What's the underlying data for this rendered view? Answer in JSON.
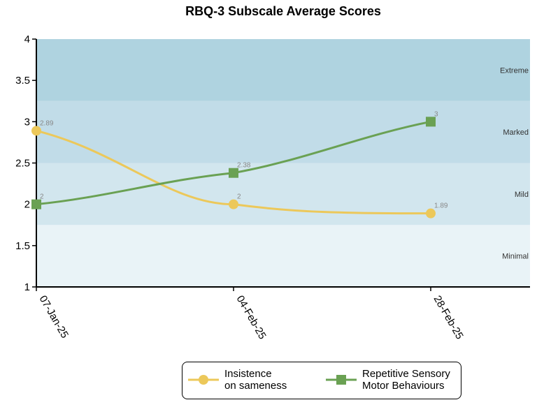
{
  "chart_data": {
    "type": "line",
    "title": "RBQ-3 Subscale Average Scores",
    "xlabel": "",
    "ylabel": "",
    "categories": [
      "07-Jan-25",
      "04-Feb-25",
      "28-Feb-25"
    ],
    "ylim": [
      1,
      4
    ],
    "yticks": [
      "1",
      "1.5",
      "2",
      "2.5",
      "3",
      "3.5",
      "4"
    ],
    "bands": [
      {
        "label": "Minimal",
        "from": 1,
        "to": 1.75,
        "color": "#e9f3f7"
      },
      {
        "label": "Mild",
        "from": 1.75,
        "to": 2.5,
        "color": "#d2e6ee"
      },
      {
        "label": "Marked",
        "from": 2.5,
        "to": 3.25,
        "color": "#c1dce8"
      },
      {
        "label": "Extreme",
        "from": 3.25,
        "to": 4,
        "color": "#afd3e0"
      }
    ],
    "series": [
      {
        "name": "Insistence\non sameness",
        "values": [
          2.89,
          2,
          1.89
        ],
        "labels": [
          "2.89",
          "2",
          "1.89"
        ],
        "color": "#ecc85a",
        "marker": "circle"
      },
      {
        "name": "Repetitive Sensory\nMotor Behaviours",
        "values": [
          2,
          2.38,
          3
        ],
        "labels": [
          "2",
          "2.38",
          "3"
        ],
        "color": "#6aa153",
        "marker": "square"
      }
    ],
    "legend": "bottom-center",
    "grid": false
  }
}
